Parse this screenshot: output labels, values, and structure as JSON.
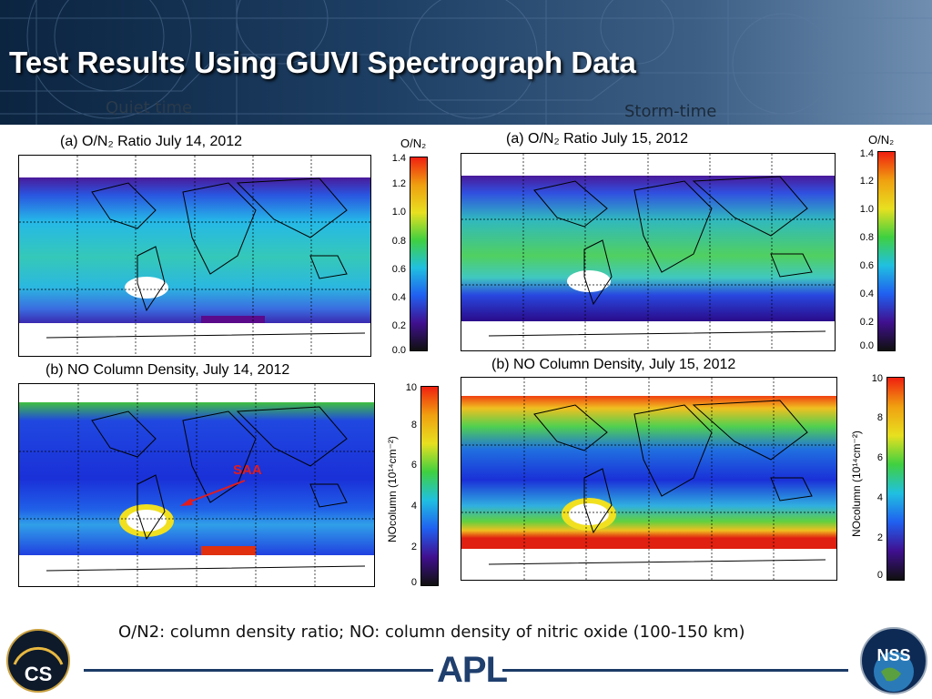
{
  "title": "Test Results Using GUVI Spectrograph Data",
  "labels": {
    "quiet": "Quiet time",
    "storm": "Storm-time"
  },
  "panels": [
    {
      "id": "quiet-on2",
      "title": "(a)  O/N₂ Ratio          July 14,  2012",
      "cbar_title": "O/N₂",
      "ticks": [
        "1.4",
        "1.2",
        "1.0",
        "0.8",
        "0.6",
        "0.4",
        "0.2",
        "0.0"
      ]
    },
    {
      "id": "storm-on2",
      "title": "(a) O/N₂ Ratio          July 15,  2012",
      "cbar_title": "O/N₂",
      "ticks": [
        "1.4",
        "1.2",
        "1.0",
        "0.8",
        "0.6",
        "0.4",
        "0.2",
        "0.0"
      ]
    },
    {
      "id": "quiet-no",
      "title": "(b) NO Column Density, July 14,  2012",
      "cbar_label": "NOcolumn (10¹⁴cm⁻²)",
      "ticks": [
        "10",
        "8",
        "6",
        "4",
        "2",
        "0"
      ]
    },
    {
      "id": "storm-no",
      "title": "(b) NO Column Density, July 15,  2012",
      "cbar_label": "NOcolumn (10¹⁴cm⁻²)",
      "ticks": [
        "10",
        "8",
        "6",
        "4",
        "2",
        "0"
      ]
    }
  ],
  "annotation": {
    "saa": "SAA"
  },
  "footer": {
    "caption": "O/N2: column density ratio;  NO: column density of nitric oxide (100-150 km)",
    "apl": "APL",
    "cs": "CS",
    "nss": "NSS"
  },
  "colors": {
    "banner": "#1d3e63",
    "accent": "#e31b1b",
    "rule": "#1b3a66"
  }
}
